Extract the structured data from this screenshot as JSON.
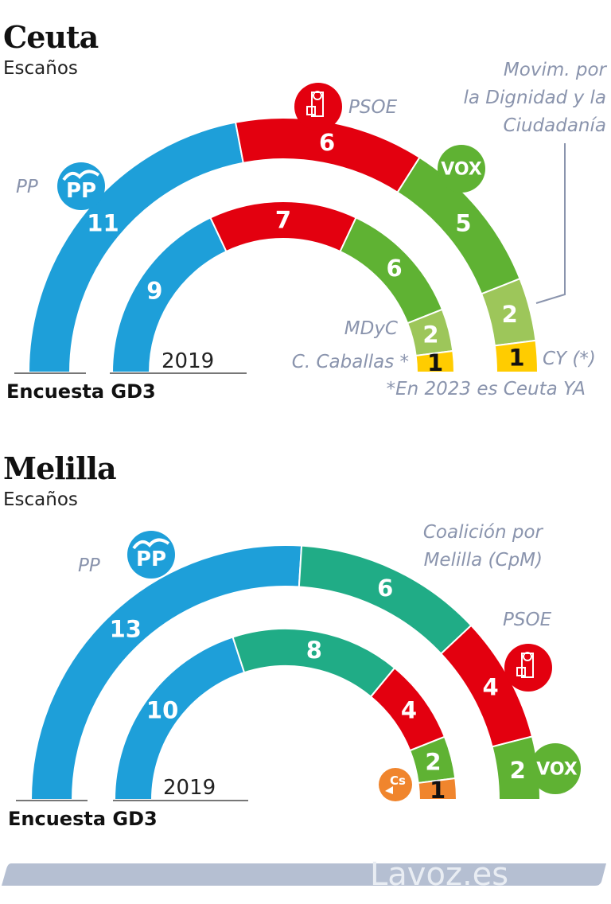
{
  "colors": {
    "PP": "#1e9fd9",
    "PSOE": "#e3000f",
    "VOX": "#5fb233",
    "MDyC": "#9dc65a",
    "CY": "#ffcc00",
    "CpM": "#20ac86",
    "Cs": "#f0852d",
    "label": "#8a94ad",
    "footer": "#b5bfd2"
  },
  "footer": {
    "brand": "Lavoz.es"
  },
  "chart_data": [
    {
      "type": "parliament-arc",
      "title": "Ceuta",
      "subtitle": "Escaños",
      "total_seats": 25,
      "outer_label": "Encuesta GD3",
      "inner_label": "2019",
      "series": [
        {
          "name": "Encuesta GD3",
          "ring": "outer",
          "segments": [
            {
              "party": "PP",
              "seats": 11
            },
            {
              "party": "PSOE",
              "seats": 6
            },
            {
              "party": "VOX",
              "seats": 5
            },
            {
              "party": "MDyC",
              "seats": 2
            },
            {
              "party": "CY",
              "seats": 1
            }
          ]
        },
        {
          "name": "2019",
          "ring": "inner",
          "segments": [
            {
              "party": "PP",
              "seats": 9
            },
            {
              "party": "PSOE",
              "seats": 7
            },
            {
              "party": "VOX",
              "seats": 6
            },
            {
              "party": "MDyC",
              "seats": 2
            },
            {
              "party": "CY",
              "seats": 1
            }
          ]
        }
      ],
      "annotations": {
        "pp": "PP",
        "psoe": "PSOE",
        "mdyc_long": [
          "Movim. por",
          "la Dignidad y la",
          "Ciudadanía"
        ],
        "mdyc": "MDyC",
        "caballas": "C. Caballas *",
        "cy": "CY (*)",
        "footnote": "*En 2023 es Ceuta YA",
        "vox_logo": "VOX",
        "pp_logo": "PP"
      }
    },
    {
      "type": "parliament-arc",
      "title": "Melilla",
      "subtitle": "Escaños",
      "total_seats": 25,
      "outer_label": "Encuesta GD3",
      "inner_label": "2019",
      "series": [
        {
          "name": "Encuesta GD3",
          "ring": "outer",
          "segments": [
            {
              "party": "PP",
              "seats": 13
            },
            {
              "party": "CpM",
              "seats": 6
            },
            {
              "party": "PSOE",
              "seats": 4
            },
            {
              "party": "VOX",
              "seats": 2
            }
          ]
        },
        {
          "name": "2019",
          "ring": "inner",
          "segments": [
            {
              "party": "PP",
              "seats": 10
            },
            {
              "party": "CpM",
              "seats": 8
            },
            {
              "party": "PSOE",
              "seats": 4
            },
            {
              "party": "VOX",
              "seats": 2
            },
            {
              "party": "Cs",
              "seats": 1
            }
          ]
        }
      ],
      "annotations": {
        "pp": "PP",
        "cpm": [
          "Coalición por",
          "Melilla (CpM)"
        ],
        "psoe": "PSOE",
        "vox_logo": "VOX",
        "pp_logo": "PP",
        "cs_logo": "Cs"
      }
    }
  ]
}
